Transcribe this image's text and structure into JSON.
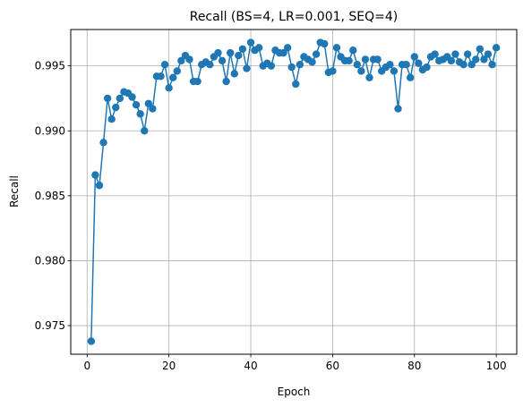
{
  "chart_data": {
    "type": "line",
    "title": "Recall (BS=4, LR=0.001, SEQ=4)",
    "xlabel": "Epoch",
    "ylabel": "Recall",
    "xlim": [
      -4,
      105
    ],
    "ylim": [
      0.9728,
      0.9978
    ],
    "xticks": [
      0,
      20,
      40,
      60,
      80,
      100
    ],
    "yticks": [
      0.975,
      0.98,
      0.985,
      0.99,
      0.995
    ],
    "ytick_labels": [
      "0.975",
      "0.980",
      "0.985",
      "0.990",
      "0.995"
    ],
    "grid": true,
    "marker": "circle",
    "color": "#1f77b4",
    "series": [
      {
        "x": [
          1,
          2,
          3,
          4,
          5,
          6,
          7,
          8,
          9,
          10,
          11,
          12,
          13,
          14,
          15,
          16,
          17,
          18,
          19,
          20,
          21,
          22,
          23,
          24,
          25,
          26,
          27,
          28,
          29,
          30,
          31,
          32,
          33,
          34,
          35,
          36,
          37,
          38,
          39,
          40,
          41,
          42,
          43,
          44,
          45,
          46,
          47,
          48,
          49,
          50,
          51,
          52,
          53,
          54,
          55,
          56,
          57,
          58,
          59,
          60,
          61,
          62,
          63,
          64,
          65,
          66,
          67,
          68,
          69,
          70,
          71,
          72,
          73,
          74,
          75,
          76,
          77,
          78,
          79,
          80,
          81,
          82,
          83,
          84,
          85,
          86,
          87,
          88,
          89,
          90,
          91,
          92,
          93,
          94,
          95,
          96,
          97,
          98,
          99,
          100
        ],
        "values": [
          0.9738,
          0.9866,
          0.9858,
          0.9891,
          0.9925,
          0.9909,
          0.9918,
          0.9925,
          0.993,
          0.9929,
          0.9926,
          0.992,
          0.9913,
          0.99,
          0.9921,
          0.9917,
          0.9942,
          0.9942,
          0.9951,
          0.9933,
          0.9941,
          0.9946,
          0.9954,
          0.9958,
          0.9955,
          0.9938,
          0.9938,
          0.9951,
          0.9953,
          0.9951,
          0.9957,
          0.996,
          0.9954,
          0.9938,
          0.996,
          0.9944,
          0.9958,
          0.9963,
          0.9948,
          0.9968,
          0.9962,
          0.9964,
          0.995,
          0.9952,
          0.995,
          0.9962,
          0.996,
          0.996,
          0.9964,
          0.9949,
          0.9936,
          0.9951,
          0.9957,
          0.9955,
          0.9953,
          0.9959,
          0.9968,
          0.9967,
          0.9945,
          0.9946,
          0.9964,
          0.9957,
          0.9954,
          0.9954,
          0.9962,
          0.9951,
          0.9946,
          0.9955,
          0.9941,
          0.9955,
          0.9955,
          0.9946,
          0.9949,
          0.9951,
          0.9946,
          0.9917,
          0.9951,
          0.9951,
          0.9941,
          0.9957,
          0.9952,
          0.9947,
          0.9949,
          0.9957,
          0.9959,
          0.9954,
          0.9955,
          0.9957,
          0.9954,
          0.9959,
          0.9953,
          0.9951,
          0.9959,
          0.9951,
          0.9955,
          0.9963,
          0.9955,
          0.9959,
          0.9951,
          0.9964
        ]
      }
    ]
  }
}
